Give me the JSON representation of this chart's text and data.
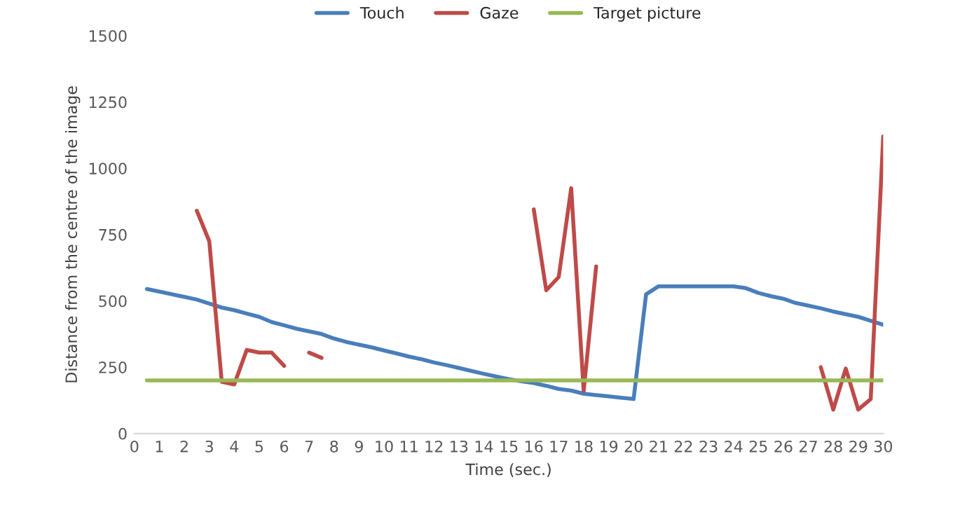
{
  "chart_data": {
    "type": "line",
    "xlabel": "Time (sec.)",
    "ylabel": "Distance from the centre of the image",
    "x": [
      0.5,
      1,
      1.5,
      2,
      2.5,
      3,
      3.5,
      4,
      4.5,
      5,
      5.5,
      6,
      6.5,
      7,
      7.5,
      8,
      8.5,
      9,
      9.5,
      10,
      10.5,
      11,
      11.5,
      12,
      12.5,
      13,
      13.5,
      14,
      14.5,
      15,
      15.5,
      16,
      16.5,
      17,
      17.5,
      18,
      18.5,
      19,
      19.5,
      20,
      20.5,
      21,
      21.5,
      22,
      22.5,
      23,
      23.5,
      24,
      24.5,
      25,
      25.5,
      26,
      26.5,
      27,
      27.5,
      28,
      28.5,
      29,
      29.5,
      30
    ],
    "series": [
      {
        "name": "Touch",
        "color": "#4a7ebb",
        "values": [
          545,
          535,
          525,
          515,
          505,
          490,
          475,
          465,
          452,
          440,
          420,
          408,
          395,
          385,
          375,
          358,
          345,
          335,
          325,
          313,
          302,
          290,
          280,
          268,
          258,
          247,
          236,
          225,
          215,
          205,
          197,
          190,
          180,
          168,
          162,
          150,
          145,
          140,
          135,
          130,
          525,
          555,
          555,
          555,
          555,
          555,
          555,
          555,
          548,
          530,
          518,
          508,
          492,
          482,
          472,
          460,
          450,
          440,
          425,
          410
        ]
      },
      {
        "name": "Gaze",
        "color": "#be4b48",
        "values": [
          null,
          null,
          null,
          null,
          840,
          725,
          195,
          185,
          315,
          305,
          305,
          255,
          null,
          305,
          285,
          null,
          null,
          null,
          null,
          null,
          null,
          null,
          null,
          null,
          null,
          null,
          null,
          null,
          null,
          null,
          null,
          845,
          540,
          590,
          925,
          160,
          630,
          null,
          null,
          null,
          null,
          null,
          null,
          null,
          null,
          null,
          null,
          null,
          null,
          null,
          null,
          null,
          null,
          null,
          250,
          90,
          245,
          90,
          130,
          1120
        ]
      },
      {
        "name": "Target picture",
        "color": "#98b954",
        "values": [
          200,
          200,
          200,
          200,
          200,
          200,
          200,
          200,
          200,
          200,
          200,
          200,
          200,
          200,
          200,
          200,
          200,
          200,
          200,
          200,
          200,
          200,
          200,
          200,
          200,
          200,
          200,
          200,
          200,
          200,
          200,
          200,
          200,
          200,
          200,
          200,
          200,
          200,
          200,
          200,
          200,
          200,
          200,
          200,
          200,
          200,
          200,
          200,
          200,
          200,
          200,
          200,
          200,
          200,
          200,
          200,
          200,
          200,
          200,
          200
        ]
      }
    ],
    "xlim": [
      0,
      30
    ],
    "xticks": [
      0,
      1,
      2,
      3,
      4,
      5,
      6,
      7,
      8,
      9,
      10,
      11,
      12,
      13,
      14,
      15,
      16,
      17,
      18,
      19,
      20,
      21,
      22,
      23,
      24,
      25,
      26,
      27,
      28,
      29,
      30
    ],
    "ylim": [
      0,
      1500
    ],
    "yticks": [
      0,
      250,
      500,
      750,
      1000,
      1250,
      1500
    ],
    "grid": false,
    "legend": "top",
    "marker": "none",
    "line_style": "solid"
  }
}
